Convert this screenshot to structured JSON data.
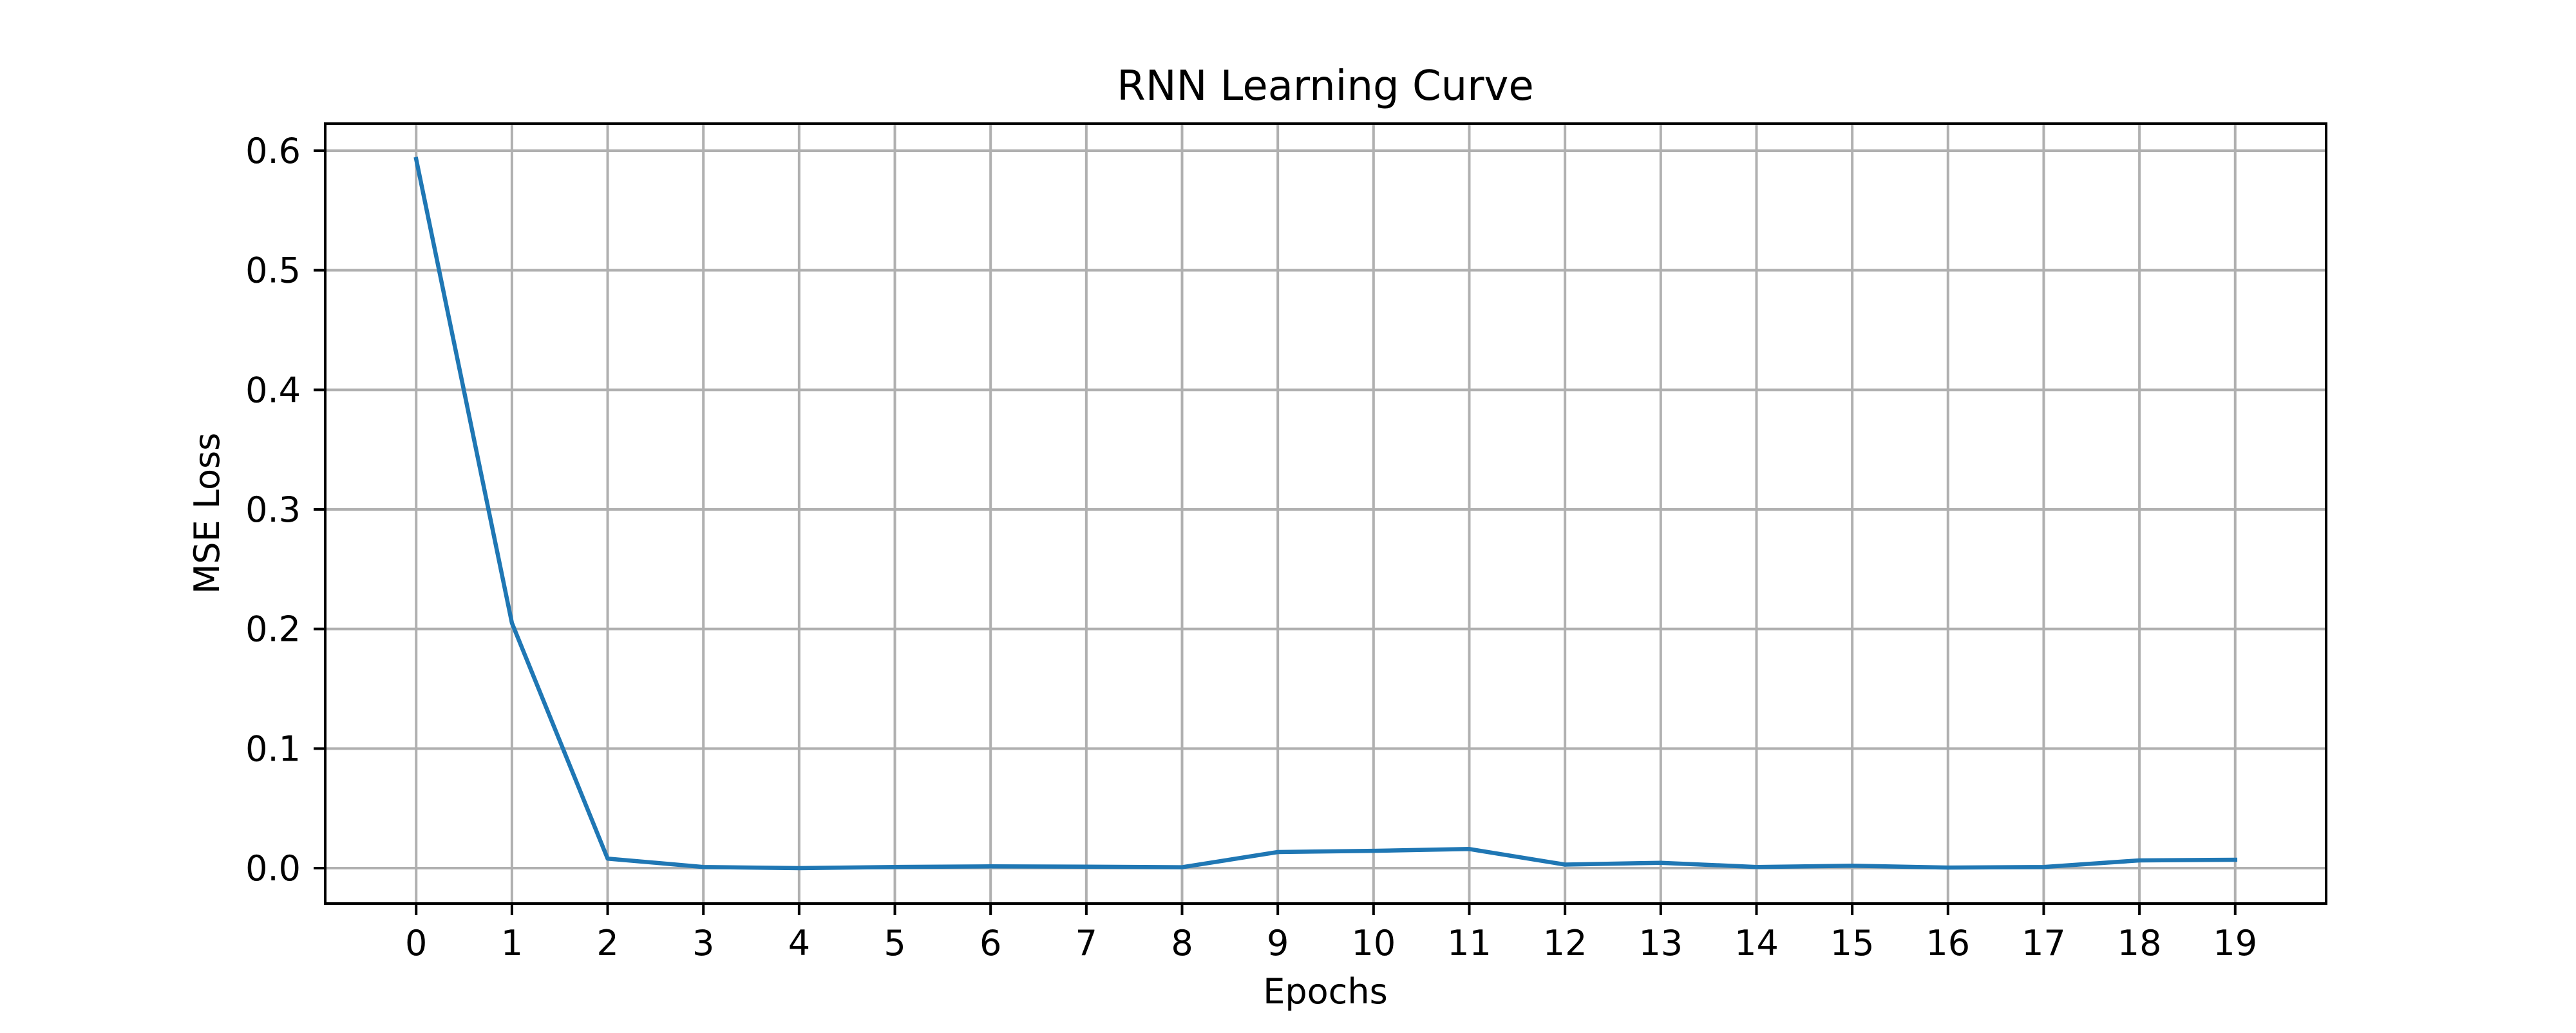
{
  "chart_data": {
    "type": "line",
    "title": "RNN Learning Curve",
    "xlabel": "Epochs",
    "ylabel": "MSE Loss",
    "x": [
      0,
      1,
      2,
      3,
      4,
      5,
      6,
      7,
      8,
      9,
      10,
      11,
      12,
      13,
      14,
      15,
      16,
      17,
      18,
      19
    ],
    "series": [
      {
        "values": [
          0.593,
          0.205,
          0.008,
          0.001,
          0.0,
          0.001,
          0.0015,
          0.0012,
          0.0008,
          0.0135,
          0.0145,
          0.016,
          0.003,
          0.0045,
          0.001,
          0.002,
          0.0005,
          0.001,
          0.0065,
          0.007
        ],
        "color": "#1f77b4"
      }
    ],
    "xticks": [
      "0",
      "1",
      "2",
      "3",
      "4",
      "5",
      "6",
      "7",
      "8",
      "9",
      "10",
      "11",
      "12",
      "13",
      "14",
      "15",
      "16",
      "17",
      "18",
      "19"
    ],
    "yticks": [
      0.0,
      0.1,
      0.2,
      0.3,
      0.4,
      0.5,
      0.6
    ],
    "ytick_labels": [
      "0.0",
      "0.1",
      "0.2",
      "0.3",
      "0.4",
      "0.5",
      "0.6"
    ],
    "xlim": [
      -0.95,
      19.95
    ],
    "ylim": [
      -0.0296,
      0.6226
    ],
    "grid": true,
    "grid_color": "#b0b0b0",
    "frame_color": "#000000"
  }
}
